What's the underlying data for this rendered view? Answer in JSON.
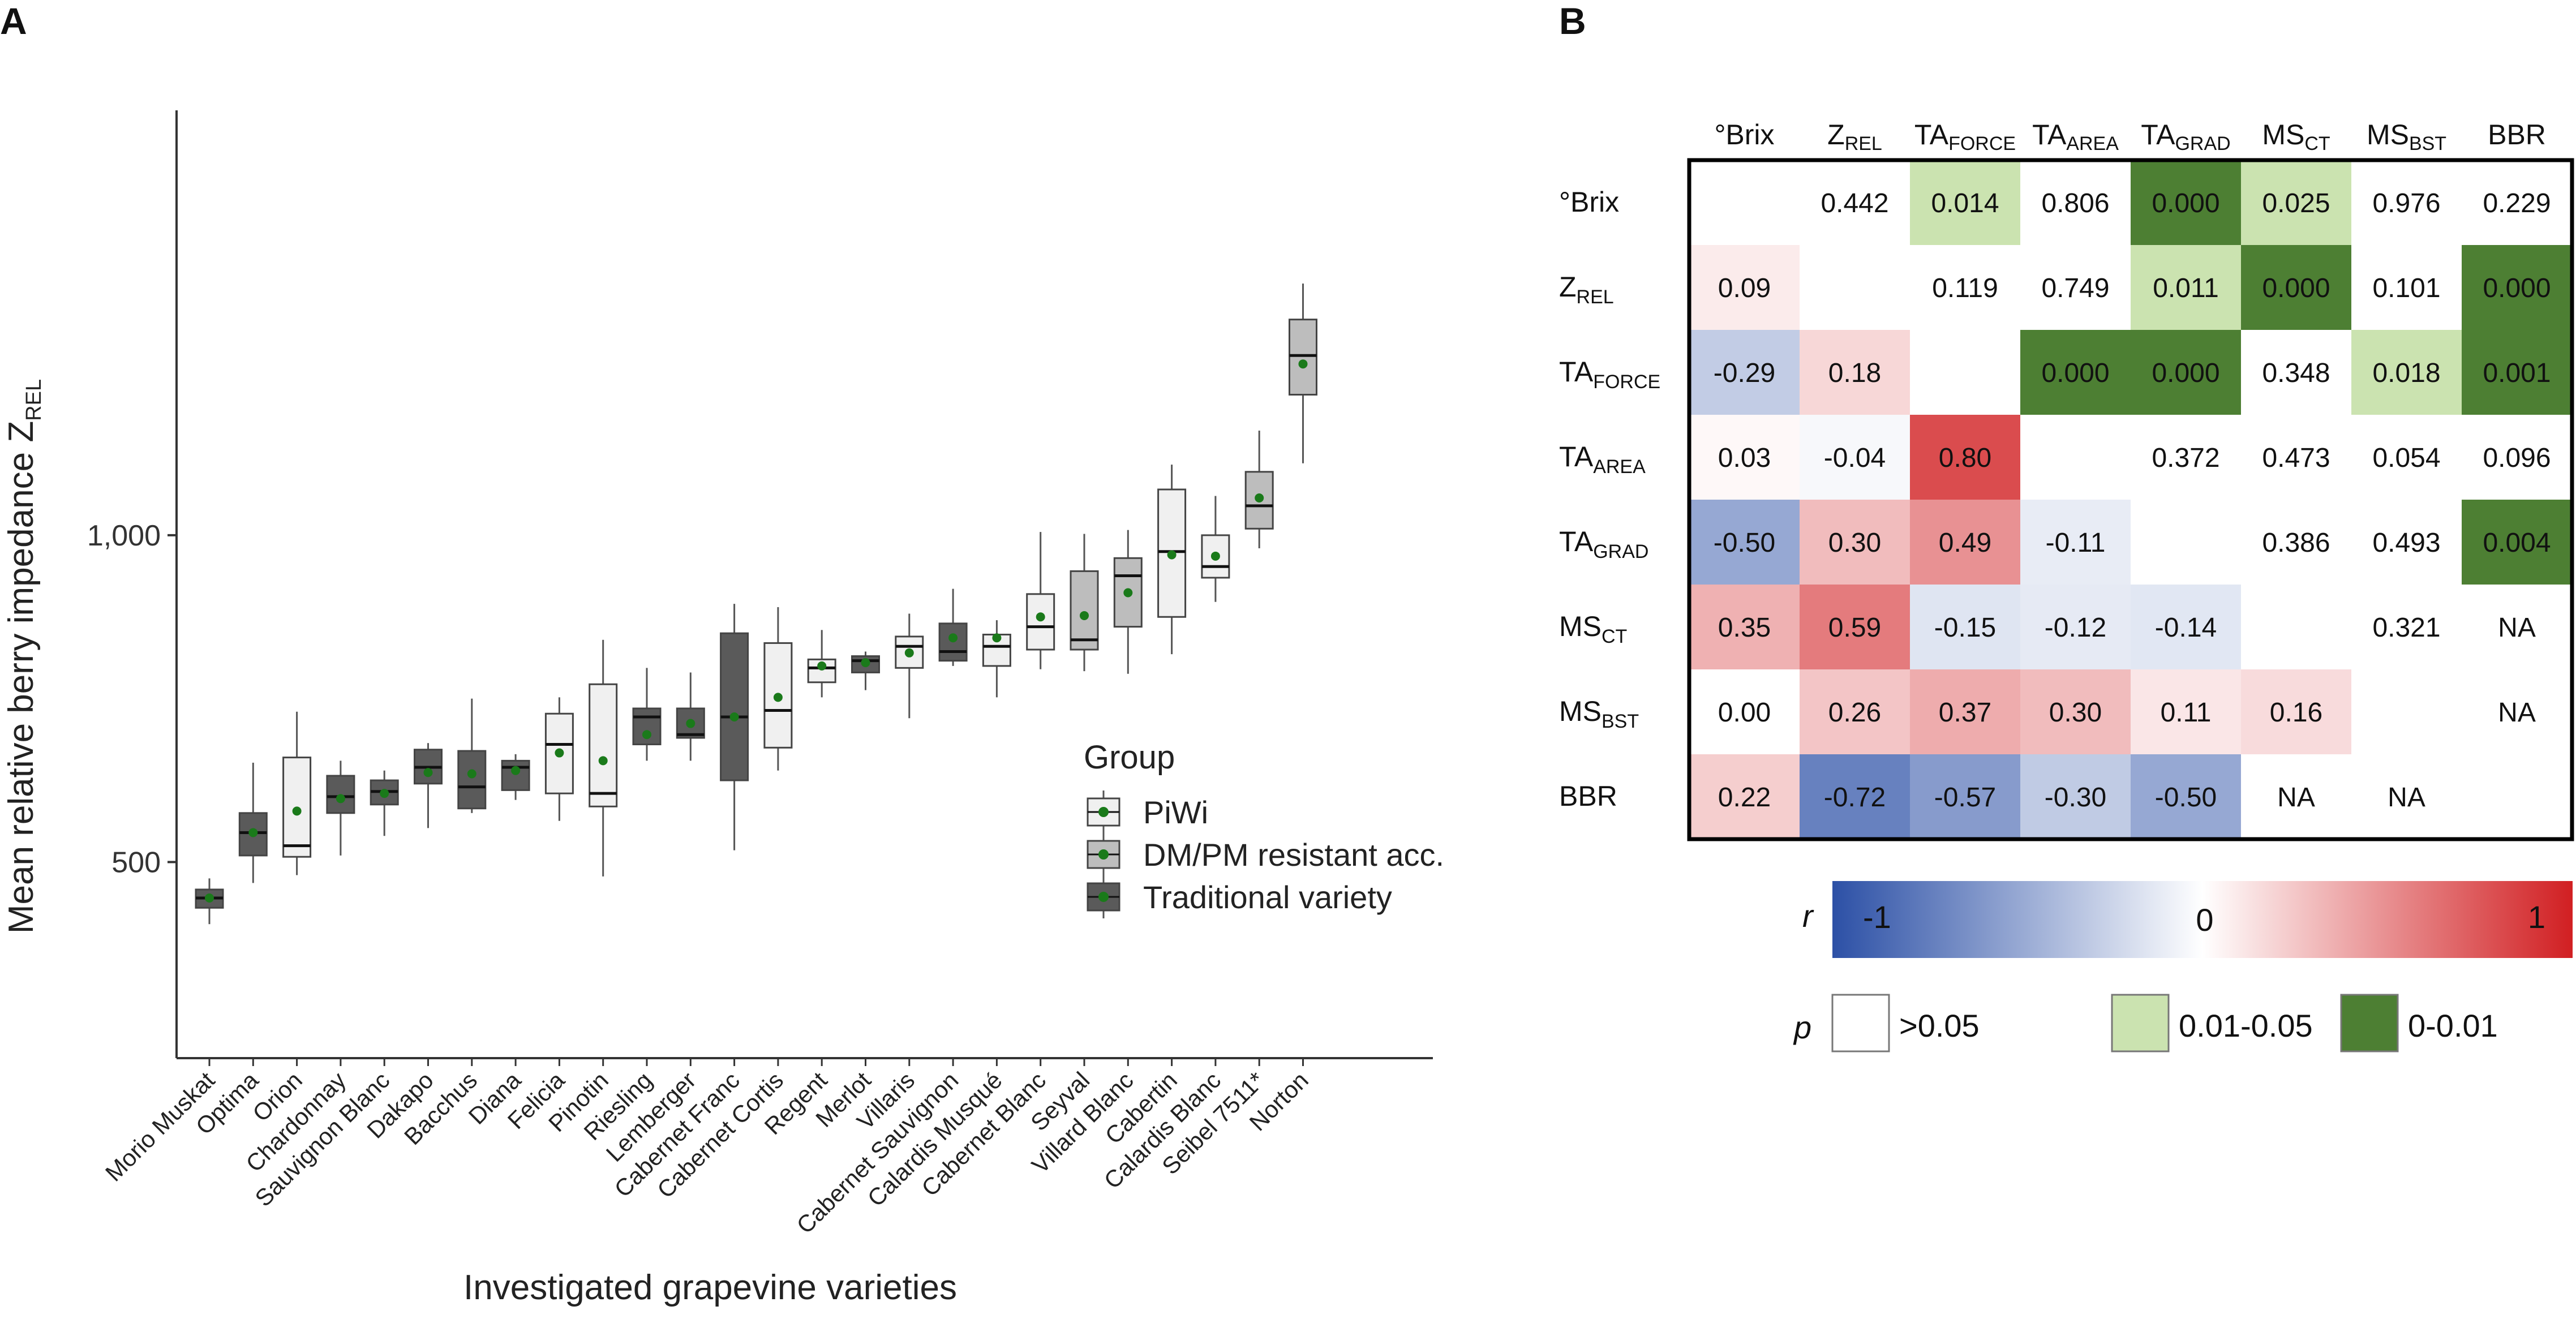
{
  "panel_a_letter": "A",
  "panel_b_letter": "B",
  "chart_data": [
    {
      "type": "boxplot",
      "panel": "A",
      "title": "",
      "xlabel": "Investigated grapevine varieties",
      "ylabel_main": "Mean relative berry impedance Z",
      "ylabel_sub": "REL",
      "ylim": [
        200,
        1650
      ],
      "yticks": [
        500,
        1000
      ],
      "ytick_labels": [
        "500",
        "1,000"
      ],
      "legend": {
        "title": "Group",
        "placement": "right-center",
        "entries": [
          {
            "key": "piwi",
            "label": "PiWi",
            "color": "#f0f0f0"
          },
          {
            "key": "dmpm",
            "label": "DM/PM resistant acc.",
            "color": "#bdbdbd"
          },
          {
            "key": "trad",
            "label": "Traditional variety",
            "color": "#5a5a5a"
          }
        ]
      },
      "mean_marker_color": "#1a7a1a",
      "boxes": [
        {
          "label": "Morio Muskat",
          "group": "trad",
          "min": 405,
          "q1": 430,
          "median": 445,
          "q3": 458,
          "max": 475,
          "mean": 445
        },
        {
          "label": "Optima",
          "group": "trad",
          "min": 468,
          "q1": 510,
          "median": 545,
          "q3": 575,
          "max": 652,
          "mean": 545
        },
        {
          "label": "Orion",
          "group": "piwi",
          "min": 480,
          "q1": 508,
          "median": 525,
          "q3": 660,
          "max": 730,
          "mean": 578
        },
        {
          "label": "Chardonnay",
          "group": "trad",
          "min": 510,
          "q1": 575,
          "median": 600,
          "q3": 632,
          "max": 655,
          "mean": 597
        },
        {
          "label": "Sauvignon Blanc",
          "group": "trad",
          "min": 540,
          "q1": 588,
          "median": 608,
          "q3": 625,
          "max": 640,
          "mean": 605
        },
        {
          "label": "Dakapo",
          "group": "trad",
          "min": 552,
          "q1": 620,
          "median": 645,
          "q3": 672,
          "max": 682,
          "mean": 637
        },
        {
          "label": "Bacchus",
          "group": "trad",
          "min": 575,
          "q1": 582,
          "median": 615,
          "q3": 670,
          "max": 750,
          "mean": 635
        },
        {
          "label": "Diana",
          "group": "trad",
          "min": 595,
          "q1": 610,
          "median": 645,
          "q3": 655,
          "max": 665,
          "mean": 640
        },
        {
          "label": "Felicia",
          "group": "piwi",
          "min": 563,
          "q1": 605,
          "median": 680,
          "q3": 727,
          "max": 752,
          "mean": 667
        },
        {
          "label": "Pinotin",
          "group": "piwi",
          "min": 478,
          "q1": 585,
          "median": 605,
          "q3": 772,
          "max": 840,
          "mean": 655
        },
        {
          "label": "Riesling",
          "group": "trad",
          "min": 655,
          "q1": 680,
          "median": 722,
          "q3": 735,
          "max": 797,
          "mean": 695
        },
        {
          "label": "Lemberger",
          "group": "trad",
          "min": 655,
          "q1": 690,
          "median": 695,
          "q3": 735,
          "max": 790,
          "mean": 712
        },
        {
          "label": "Cabernet Franc",
          "group": "trad",
          "min": 518,
          "q1": 625,
          "median": 722,
          "q3": 850,
          "max": 895,
          "mean": 722
        },
        {
          "label": "Cabernet Cortis",
          "group": "piwi",
          "min": 640,
          "q1": 675,
          "median": 732,
          "q3": 835,
          "max": 890,
          "mean": 752
        },
        {
          "label": "Regent",
          "group": "piwi",
          "min": 752,
          "q1": 775,
          "median": 797,
          "q3": 810,
          "max": 855,
          "mean": 800
        },
        {
          "label": "Merlot",
          "group": "trad",
          "min": 763,
          "q1": 790,
          "median": 808,
          "q3": 815,
          "max": 822,
          "mean": 805
        },
        {
          "label": "Villaris",
          "group": "piwi",
          "min": 720,
          "q1": 797,
          "median": 830,
          "q3": 845,
          "max": 880,
          "mean": 820
        },
        {
          "label": "Cabernet Sauvignon",
          "group": "trad",
          "min": 800,
          "q1": 808,
          "median": 822,
          "q3": 865,
          "max": 918,
          "mean": 843
        },
        {
          "label": "Calardis Musqué",
          "group": "piwi",
          "min": 752,
          "q1": 800,
          "median": 830,
          "q3": 848,
          "max": 870,
          "mean": 843
        },
        {
          "label": "Cabernet Blanc",
          "group": "piwi",
          "min": 795,
          "q1": 825,
          "median": 860,
          "q3": 910,
          "max": 1005,
          "mean": 875
        },
        {
          "label": "Seyval",
          "group": "dmpm",
          "min": 792,
          "q1": 825,
          "median": 840,
          "q3": 945,
          "max": 1002,
          "mean": 877
        },
        {
          "label": "Villard Blanc",
          "group": "dmpm",
          "min": 788,
          "q1": 860,
          "median": 938,
          "q3": 965,
          "max": 1008,
          "mean": 912
        },
        {
          "label": "Cabertin",
          "group": "piwi",
          "min": 818,
          "q1": 875,
          "median": 975,
          "q3": 1070,
          "max": 1108,
          "mean": 970
        },
        {
          "label": "Calardis Blanc",
          "group": "piwi",
          "min": 898,
          "q1": 935,
          "median": 952,
          "q3": 1000,
          "max": 1060,
          "mean": 968
        },
        {
          "label": "Seibel 7511*",
          "group": "dmpm",
          "min": 980,
          "q1": 1010,
          "median": 1045,
          "q3": 1097,
          "max": 1160,
          "mean": 1057
        },
        {
          "label": "Norton",
          "group": "dmpm",
          "min": 1110,
          "q1": 1215,
          "median": 1275,
          "q3": 1330,
          "max": 1385,
          "mean": 1262
        }
      ]
    },
    {
      "type": "heatmap",
      "panel": "B",
      "variables": [
        {
          "main": "°Brix",
          "sub": ""
        },
        {
          "main": "Z",
          "sub": "REL"
        },
        {
          "main": "TA",
          "sub": "FORCE"
        },
        {
          "main": "TA",
          "sub": "AREA"
        },
        {
          "main": "TA",
          "sub": "GRAD"
        },
        {
          "main": "MS",
          "sub": "CT"
        },
        {
          "main": "MS",
          "sub": "BST"
        },
        {
          "main": "BBR",
          "sub": ""
        }
      ],
      "cells": [
        [
          "",
          "0.442",
          "0.014",
          "0.806",
          "0.000",
          "0.025",
          "0.976",
          "0.229"
        ],
        [
          "0.09",
          "",
          "0.119",
          "0.749",
          "0.011",
          "0.000",
          "0.101",
          "0.000"
        ],
        [
          "-0.29",
          "0.18",
          "",
          "0.000",
          "0.000",
          "0.348",
          "0.018",
          "0.001"
        ],
        [
          "0.03",
          "-0.04",
          "0.80",
          "",
          "0.372",
          "0.473",
          "0.054",
          "0.096"
        ],
        [
          "-0.50",
          "0.30",
          "0.49",
          "-0.11",
          "",
          "0.386",
          "0.493",
          "0.004"
        ],
        [
          "0.35",
          "0.59",
          "-0.15",
          "-0.12",
          "-0.14",
          "",
          "0.321",
          "NA"
        ],
        [
          "0.00",
          "0.26",
          "0.37",
          "0.30",
          "0.11",
          "0.16",
          "",
          "NA"
        ],
        [
          "0.22",
          "-0.72",
          "-0.57",
          "-0.30",
          "-0.50",
          "NA",
          "NA",
          ""
        ]
      ],
      "lower_triangle": "Pearson r",
      "upper_triangle": "p-value",
      "r_scale": {
        "label": "r",
        "min_label": "-1",
        "mid_label": "0",
        "max_label": "1",
        "low_color": "#2c50a6",
        "mid_color": "#ffffff",
        "high_color": "#d11f22"
      },
      "p_legend": {
        "label": "p",
        "entries": [
          {
            "label": ">0.05",
            "color": "#ffffff"
          },
          {
            "label": "0.01-0.05",
            "color": "#cbe3b0"
          },
          {
            "label": "0-0.01",
            "color": "#4d7f33"
          }
        ]
      }
    }
  ]
}
